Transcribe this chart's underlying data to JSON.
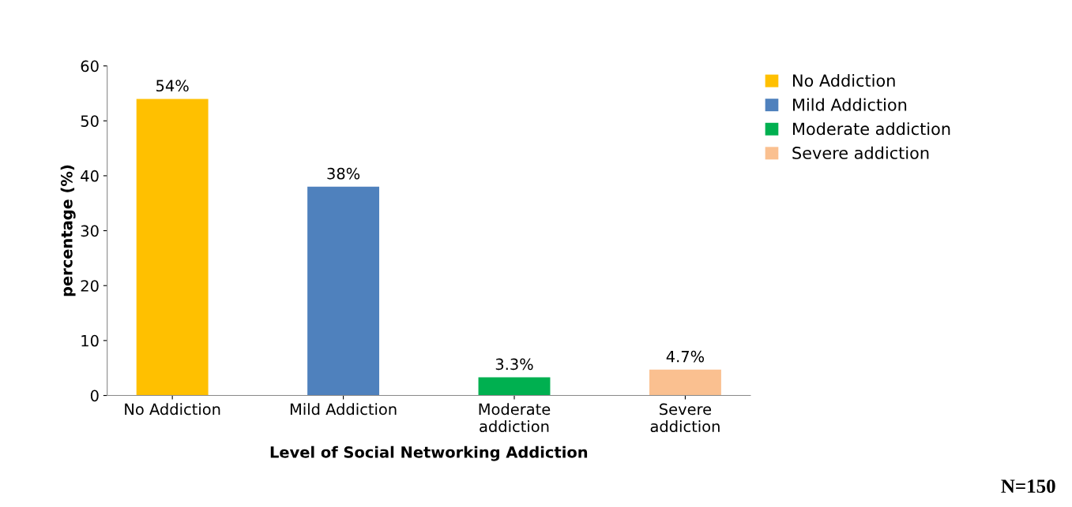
{
  "chart_data": {
    "type": "bar",
    "xlabel": "Level of Social Networking Addiction",
    "ylabel": "percentage (%)",
    "categories": [
      "No Addiction",
      "Mild Addiction",
      "Moderate\naddiction",
      "Severe\naddiction"
    ],
    "grid": false,
    "series": [
      {
        "name": "No Addiction",
        "color": "#ffc000",
        "values": [
          54,
          null,
          null,
          null
        ],
        "value_labels": [
          "54%",
          null,
          null,
          null
        ]
      },
      {
        "name": "Mild Addiction",
        "color": "#4f81bd",
        "values": [
          null,
          38,
          null,
          null
        ],
        "value_labels": [
          null,
          "38%",
          null,
          null
        ]
      },
      {
        "name": "Moderate addiction",
        "color": "#00b050",
        "values": [
          null,
          null,
          3.3,
          null
        ],
        "value_labels": [
          null,
          null,
          "3.3%",
          null
        ]
      },
      {
        "name": "Severe addiction",
        "color": "#fac090",
        "values": [
          null,
          null,
          null,
          4.7
        ],
        "value_labels": [
          null,
          null,
          null,
          "4.7%"
        ]
      }
    ],
    "ylim": [
      0,
      60
    ],
    "yticks": [
      0,
      10,
      20,
      30,
      40,
      50,
      60
    ],
    "legend": "top right",
    "annotations": [
      "N=150"
    ]
  }
}
